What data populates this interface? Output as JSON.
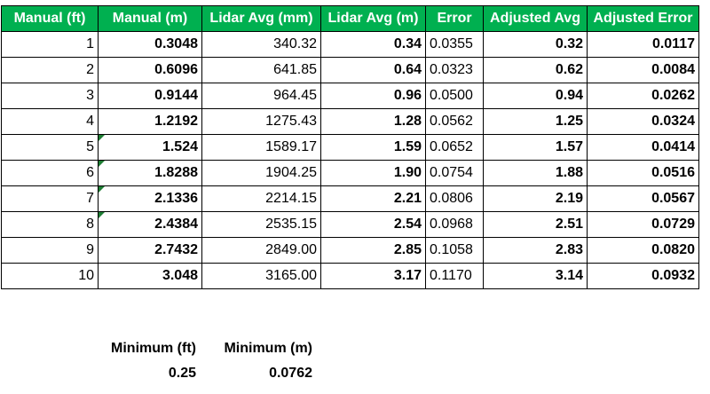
{
  "table": {
    "headers": [
      "Manual (ft)",
      "Manual (m)",
      "Lidar Avg (mm)",
      "Lidar Avg (m)",
      "Error",
      "Adjusted Avg",
      "Adjusted Error"
    ],
    "rows": [
      [
        "1",
        "0.3048",
        "340.32",
        "0.34",
        "0.0355",
        "0.32",
        "0.0117"
      ],
      [
        "2",
        "0.6096",
        "641.85",
        "0.64",
        "0.0323",
        "0.62",
        "0.0084"
      ],
      [
        "3",
        "0.9144",
        "964.45",
        "0.96",
        "0.0500",
        "0.94",
        "0.0262"
      ],
      [
        "4",
        "1.2192",
        "1275.43",
        "1.28",
        "0.0562",
        "1.25",
        "0.0324"
      ],
      [
        "5",
        "1.524",
        "1589.17",
        "1.59",
        "0.0652",
        "1.57",
        "0.0414"
      ],
      [
        "6",
        "1.8288",
        "1904.25",
        "1.90",
        "0.0754",
        "1.88",
        "0.0516"
      ],
      [
        "7",
        "2.1336",
        "2214.15",
        "2.21",
        "0.0806",
        "2.19",
        "0.0567"
      ],
      [
        "8",
        "2.4384",
        "2535.15",
        "2.54",
        "0.0968",
        "2.51",
        "0.0729"
      ],
      [
        "9",
        "2.7432",
        "2849.00",
        "2.85",
        "0.1058",
        "2.83",
        "0.0820"
      ],
      [
        "10",
        "3.048",
        "3165.00",
        "3.17",
        "0.1170",
        "3.14",
        "0.0932"
      ]
    ]
  },
  "summary": {
    "min_ft_label": "Minimum (ft)",
    "min_m_label": "Minimum (m)",
    "min_ft_value": "0.25",
    "min_m_value": "0.0762"
  },
  "colors": {
    "header_bg": "#00b050",
    "header_text": "#ffffff",
    "flag": "#1e7e34"
  }
}
